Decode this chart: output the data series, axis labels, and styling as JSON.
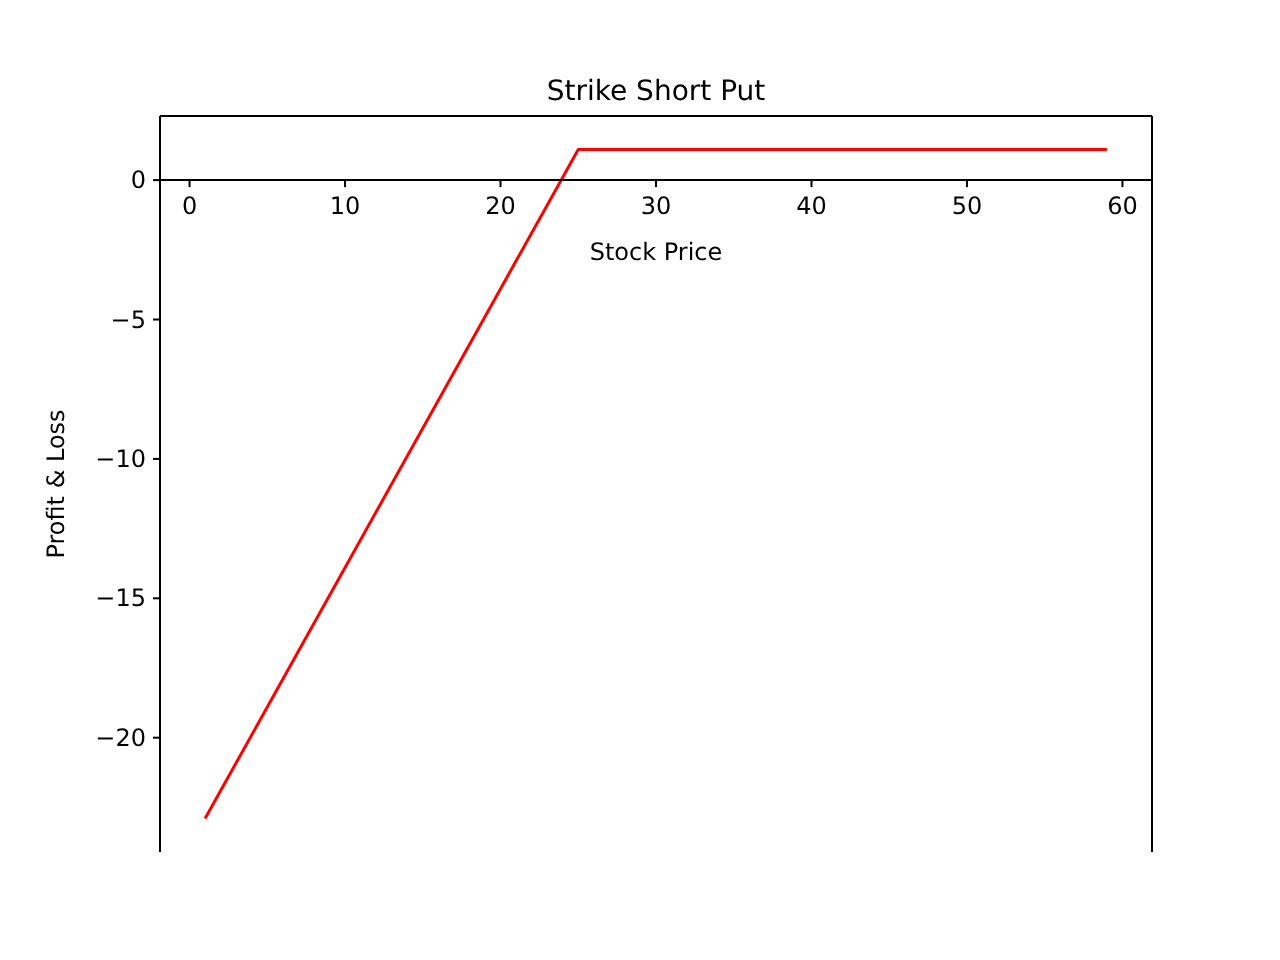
{
  "chart_data": {
    "type": "line",
    "title": "Strike Short Put",
    "xlabel": "Stock Price",
    "ylabel": "Profit & Loss",
    "x": [
      1,
      25,
      59
    ],
    "series": [
      {
        "color": "#ff0000",
        "values": [
          -22.9,
          1.1,
          1.1
        ]
      }
    ],
    "xlim": [
      -1.9,
      61.9
    ],
    "xticks": [
      0,
      10,
      20,
      30,
      40,
      50,
      60
    ],
    "ylim": [
      -24.1,
      2.3
    ],
    "yticks": [
      {
        "value": -20,
        "label": "−20"
      },
      {
        "value": -15,
        "label": "−15"
      },
      {
        "value": -10,
        "label": "−10"
      },
      {
        "value": -5,
        "label": "−5"
      },
      0
    ],
    "grid": false,
    "marker": "none",
    "line_style": "solid"
  }
}
